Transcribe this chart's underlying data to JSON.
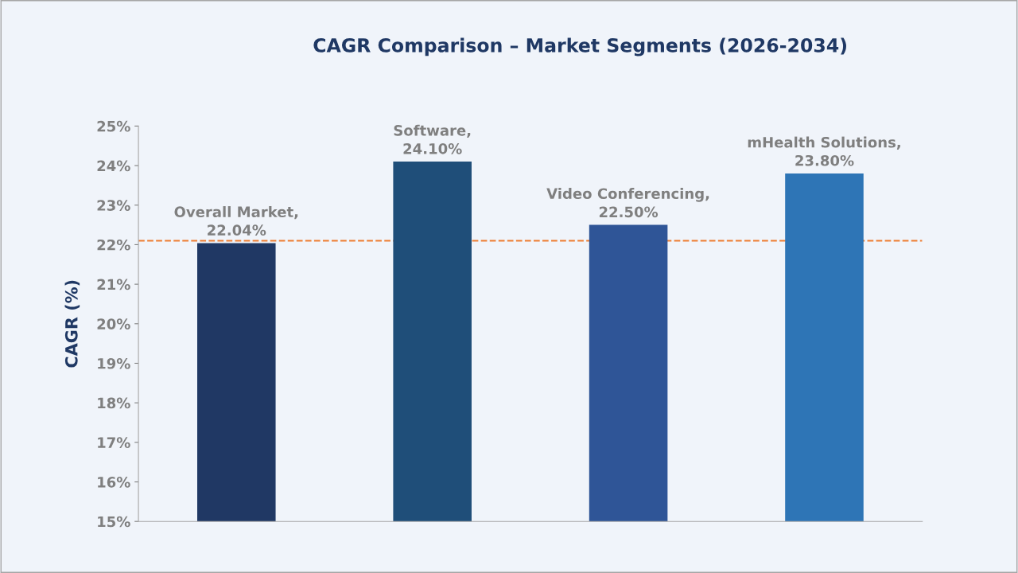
{
  "chart_data": {
    "type": "bar",
    "title": "CAGR Comparison – Market Segments (2026-2034)",
    "ylabel": "CAGR (%)",
    "categories": [
      null,
      null,
      null,
      null
    ],
    "values": [
      22.04,
      24.1,
      22.5,
      23.8
    ],
    "colors": [
      "#203864",
      "#1f4e79",
      "#2f5597",
      "#2e75b6"
    ],
    "value_labels": [
      "Overall Market,\n22.04%",
      "Software,\n24.10%",
      "Video Conferencing,\n22.50%",
      "mHealth Solutions,\n23.80%"
    ],
    "ylim": [
      15,
      25
    ],
    "yticks": [
      {
        "value": 15,
        "label": "15%"
      },
      {
        "value": 16,
        "label": "16%"
      },
      {
        "value": 17,
        "label": "17%"
      },
      {
        "value": 18,
        "label": "18%"
      },
      {
        "value": 19,
        "label": "19%"
      },
      {
        "value": 20,
        "label": "20%"
      },
      {
        "value": 21,
        "label": "21%"
      },
      {
        "value": 22,
        "label": "22%"
      },
      {
        "value": 23,
        "label": "23%"
      },
      {
        "value": 24,
        "label": "24%"
      },
      {
        "value": 25,
        "label": "25%"
      }
    ],
    "ref_lines": [
      {
        "axis": "y",
        "value": 22.1,
        "color": "#ed7d31",
        "line_style": "dashed"
      }
    ],
    "grid": false,
    "legend": false
  }
}
